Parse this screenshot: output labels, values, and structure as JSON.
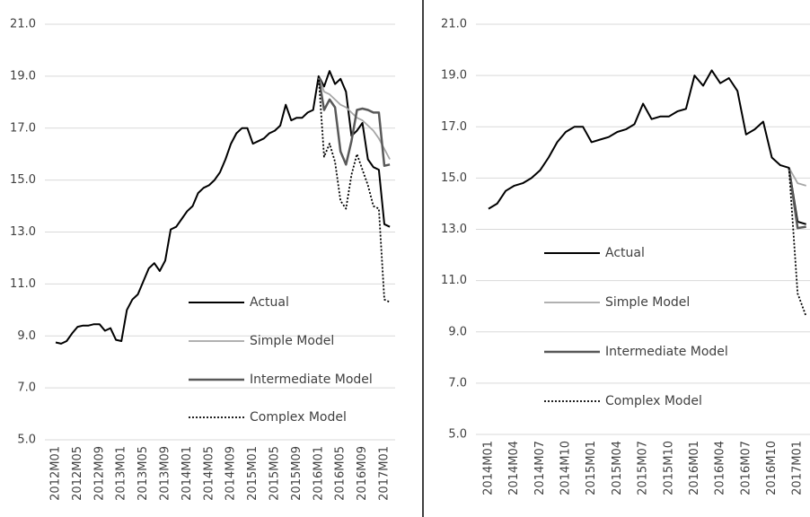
{
  "chart_data": [
    {
      "type": "line",
      "categories": [
        "2012M01",
        null,
        null,
        null,
        "2012M05",
        null,
        null,
        null,
        "2012M09",
        null,
        null,
        null,
        "2013M01",
        null,
        null,
        null,
        "2013M05",
        null,
        null,
        null,
        "2013M09",
        null,
        null,
        null,
        "2014M01",
        null,
        null,
        null,
        "2014M05",
        null,
        null,
        null,
        "2014M09",
        null,
        null,
        null,
        "2015M01",
        null,
        null,
        null,
        "2015M05",
        null,
        null,
        null,
        "2015M09",
        null,
        null,
        null,
        "2016M01",
        null,
        null,
        null,
        "2016M05",
        null,
        null,
        null,
        "2016M09",
        null,
        null,
        null,
        "2017M01",
        null
      ],
      "ylim": [
        5,
        21
      ],
      "yticks": [
        {
          "value": 5,
          "label": "5.0"
        },
        {
          "value": 7,
          "label": "7.0"
        },
        {
          "value": 9,
          "label": "9.0"
        },
        {
          "value": 11,
          "label": "11.0"
        },
        {
          "value": 13,
          "label": "13.0"
        },
        {
          "value": 15,
          "label": "15.0"
        },
        {
          "value": 17,
          "label": "17.0"
        },
        {
          "value": 19,
          "label": "19.0"
        },
        {
          "value": 21,
          "label": "21.0"
        }
      ],
      "grid": true,
      "series": [
        {
          "name": "Actual",
          "color": "#000000",
          "style": "solid",
          "values": [
            8.75,
            8.7,
            8.8,
            9.1,
            9.35,
            9.4,
            9.4,
            9.45,
            9.45,
            9.2,
            9.3,
            8.85,
            8.8,
            10.0,
            10.4,
            10.6,
            11.1,
            11.6,
            11.8,
            11.5,
            11.9,
            13.1,
            13.2,
            13.5,
            13.8,
            14.0,
            14.5,
            14.7,
            14.8,
            15.0,
            15.3,
            15.8,
            16.4,
            16.8,
            17.0,
            17.0,
            16.4,
            16.5,
            16.6,
            16.8,
            16.9,
            17.1,
            17.9,
            17.3,
            17.4,
            17.4,
            17.6,
            17.7,
            19.0,
            18.6,
            19.2,
            18.7,
            18.9,
            18.4,
            16.7,
            16.9,
            17.2,
            15.8,
            15.5,
            15.4,
            13.3,
            13.2
          ]
        },
        {
          "name": "Simple Model",
          "color": "#a6a6a6",
          "style": "solid",
          "values": [
            null,
            null,
            null,
            null,
            null,
            null,
            null,
            null,
            null,
            null,
            null,
            null,
            null,
            null,
            null,
            null,
            null,
            null,
            null,
            null,
            null,
            null,
            null,
            null,
            null,
            null,
            null,
            null,
            null,
            null,
            null,
            null,
            null,
            null,
            null,
            null,
            null,
            null,
            null,
            null,
            null,
            null,
            null,
            null,
            null,
            null,
            null,
            null,
            19.0,
            18.4,
            18.3,
            18.1,
            17.9,
            17.8,
            17.6,
            17.4,
            17.3,
            17.1,
            16.9,
            16.6,
            16.2,
            15.8
          ]
        },
        {
          "name": "Intermediate Model",
          "color": "#595959",
          "style": "solid",
          "values": [
            null,
            null,
            null,
            null,
            null,
            null,
            null,
            null,
            null,
            null,
            null,
            null,
            null,
            null,
            null,
            null,
            null,
            null,
            null,
            null,
            null,
            null,
            null,
            null,
            null,
            null,
            null,
            null,
            null,
            null,
            null,
            null,
            null,
            null,
            null,
            null,
            null,
            null,
            null,
            null,
            null,
            null,
            null,
            null,
            null,
            null,
            null,
            null,
            19.0,
            17.7,
            18.1,
            17.8,
            16.1,
            15.6,
            16.5,
            17.7,
            17.75,
            17.7,
            17.6,
            17.6,
            15.55,
            15.6
          ]
        },
        {
          "name": "Complex Model",
          "color": "#000000",
          "style": "dotted",
          "values": [
            null,
            null,
            null,
            null,
            null,
            null,
            null,
            null,
            null,
            null,
            null,
            null,
            null,
            null,
            null,
            null,
            null,
            null,
            null,
            null,
            null,
            null,
            null,
            null,
            null,
            null,
            null,
            null,
            null,
            null,
            null,
            null,
            null,
            null,
            null,
            null,
            null,
            null,
            null,
            null,
            null,
            null,
            null,
            null,
            null,
            null,
            null,
            null,
            19.0,
            15.9,
            16.4,
            15.7,
            14.2,
            13.9,
            15.2,
            16.0,
            15.4,
            14.8,
            14.0,
            13.9,
            10.4,
            10.3
          ]
        }
      ]
    },
    {
      "type": "line",
      "categories": [
        "2014M01",
        null,
        null,
        "2014M04",
        null,
        null,
        "2014M07",
        null,
        null,
        "2014M10",
        null,
        null,
        "2015M01",
        null,
        null,
        "2015M04",
        null,
        null,
        "2015M07",
        null,
        null,
        "2015M10",
        null,
        null,
        "2016M01",
        null,
        null,
        "2016M04",
        null,
        null,
        "2016M07",
        null,
        null,
        "2016M10",
        null,
        null,
        "2017M01",
        null
      ],
      "ylim": [
        5,
        21
      ],
      "yticks": [
        {
          "value": 5,
          "label": "5.0"
        },
        {
          "value": 7,
          "label": "7.0"
        },
        {
          "value": 9,
          "label": "9.0"
        },
        {
          "value": 11,
          "label": "11.0"
        },
        {
          "value": 13,
          "label": "13.0"
        },
        {
          "value": 15,
          "label": "15.0"
        },
        {
          "value": 17,
          "label": "17.0"
        },
        {
          "value": 19,
          "label": "19.0"
        },
        {
          "value": 21,
          "label": "21.0"
        }
      ],
      "grid": true,
      "series": [
        {
          "name": "Actual",
          "color": "#000000",
          "style": "solid",
          "values": [
            13.8,
            14.0,
            14.5,
            14.7,
            14.8,
            15.0,
            15.3,
            15.8,
            16.4,
            16.8,
            17.0,
            17.0,
            16.4,
            16.5,
            16.6,
            16.8,
            16.9,
            17.1,
            17.9,
            17.3,
            17.4,
            17.4,
            17.6,
            17.7,
            19.0,
            18.6,
            19.2,
            18.7,
            18.9,
            18.4,
            16.7,
            16.9,
            17.2,
            15.8,
            15.5,
            15.4,
            13.3,
            13.2
          ]
        },
        {
          "name": "Simple Model",
          "color": "#a6a6a6",
          "style": "solid",
          "values": [
            null,
            null,
            null,
            null,
            null,
            null,
            null,
            null,
            null,
            null,
            null,
            null,
            null,
            null,
            null,
            null,
            null,
            null,
            null,
            null,
            null,
            null,
            null,
            null,
            null,
            null,
            null,
            null,
            null,
            null,
            null,
            null,
            null,
            null,
            null,
            15.4,
            14.8,
            14.7
          ]
        },
        {
          "name": "Intermediate Model",
          "color": "#595959",
          "style": "solid",
          "values": [
            null,
            null,
            null,
            null,
            null,
            null,
            null,
            null,
            null,
            null,
            null,
            null,
            null,
            null,
            null,
            null,
            null,
            null,
            null,
            null,
            null,
            null,
            null,
            null,
            null,
            null,
            null,
            null,
            null,
            null,
            null,
            null,
            null,
            null,
            null,
            15.4,
            13.05,
            13.1
          ]
        },
        {
          "name": "Complex Model",
          "color": "#000000",
          "style": "dotted",
          "values": [
            null,
            null,
            null,
            null,
            null,
            null,
            null,
            null,
            null,
            null,
            null,
            null,
            null,
            null,
            null,
            null,
            null,
            null,
            null,
            null,
            null,
            null,
            null,
            null,
            null,
            null,
            null,
            null,
            null,
            null,
            null,
            null,
            null,
            null,
            null,
            15.4,
            10.5,
            9.6
          ]
        }
      ]
    }
  ]
}
